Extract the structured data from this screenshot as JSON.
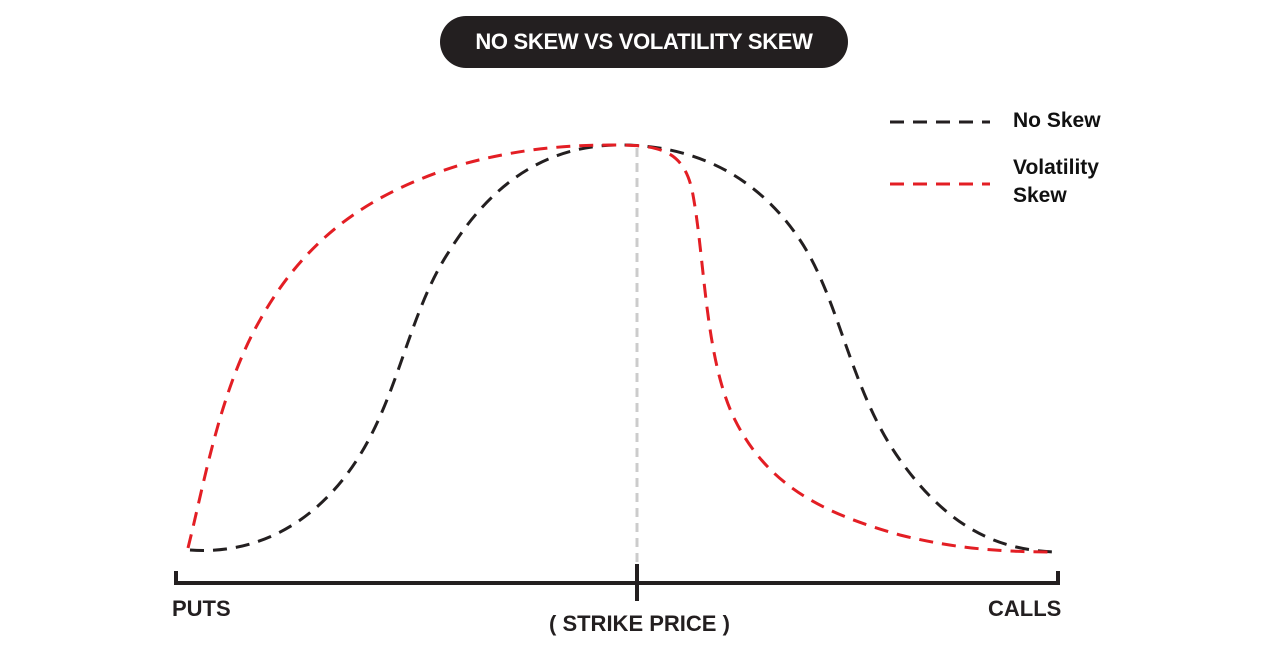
{
  "title": "NO SKEW VS VOLATILITY SKEW",
  "legend": [
    {
      "label": "No Skew",
      "color": "#231f20",
      "style": "dashed"
    },
    {
      "label": "Volatility Skew",
      "color": "#e31e24",
      "style": "dashed"
    }
  ],
  "axis": {
    "left_label": "PUTS",
    "center_label": "( STRIKE PRICE )",
    "right_label": "CALLS"
  },
  "colors": {
    "axis": "#231f20",
    "center_line": "#cccccc"
  }
}
